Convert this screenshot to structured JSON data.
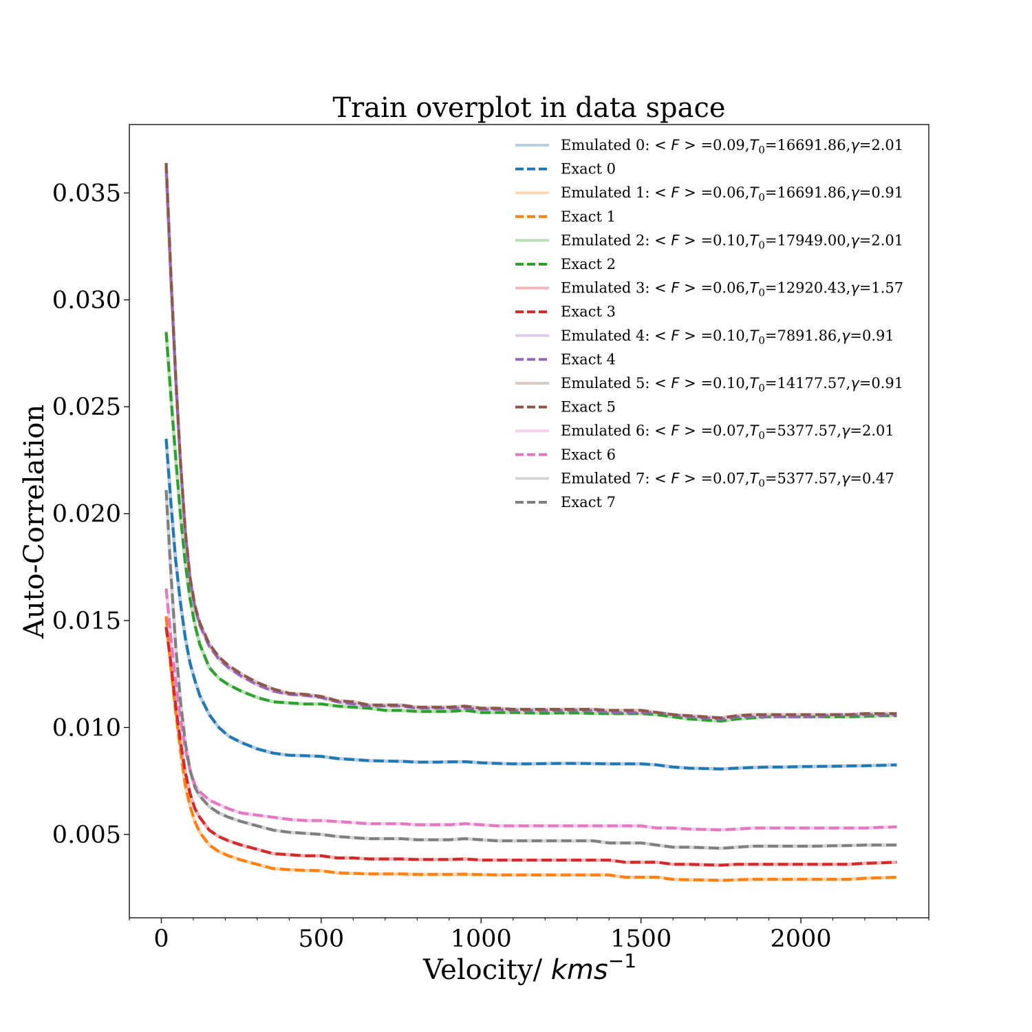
{
  "chart_data": {
    "type": "line",
    "title": "Train overplot in data space",
    "xlabel": "Velocity/ ",
    "xlabel_math": "kms",
    "xlabel_sup": "−1",
    "ylabel": "Auto-Correlation",
    "xlim": [
      -100,
      2400
    ],
    "ylim": [
      0.0011,
      0.0382
    ],
    "xticks": [
      0,
      500,
      1000,
      1500,
      2000
    ],
    "xtick_labels": [
      "0",
      "500",
      "1000",
      "1500",
      "2000"
    ],
    "yticks": [
      0.005,
      0.01,
      0.015,
      0.02,
      0.025,
      0.03,
      0.035
    ],
    "ytick_labels": [
      "0.005",
      "0.010",
      "0.015",
      "0.020",
      "0.025",
      "0.030",
      "0.035"
    ],
    "grid": false,
    "legend_position": "upper right",
    "x": [
      15,
      30,
      45,
      60,
      75,
      90,
      105,
      120,
      150,
      180,
      210,
      250,
      300,
      350,
      400,
      450,
      500,
      550,
      600,
      650,
      700,
      750,
      800,
      850,
      900,
      950,
      1000,
      1050,
      1100,
      1150,
      1200,
      1250,
      1300,
      1350,
      1400,
      1450,
      1500,
      1550,
      1600,
      1650,
      1700,
      1750,
      1800,
      1850,
      1900,
      1950,
      2000,
      2050,
      2100,
      2150,
      2200,
      2250,
      2300
    ],
    "series": [
      {
        "index": 0,
        "emulated_label": "Emulated 0:",
        "exact_label": "Exact 0",
        "params": {
          "F": "0.09",
          "T0": "16691.86",
          "gamma": "2.01"
        },
        "color": "#1f77b4",
        "light_color": "#b5cde3",
        "values": [
          0.0235,
          0.0205,
          0.0178,
          0.0158,
          0.0142,
          0.013,
          0.0122,
          0.0115,
          0.0106,
          0.01,
          0.0096,
          0.0093,
          0.009,
          0.0088,
          0.0087,
          0.00868,
          0.00865,
          0.00855,
          0.0085,
          0.00845,
          0.00843,
          0.00842,
          0.00838,
          0.00838,
          0.00839,
          0.0084,
          0.00835,
          0.00832,
          0.0083,
          0.0083,
          0.00831,
          0.00832,
          0.00832,
          0.00831,
          0.0083,
          0.0083,
          0.0083,
          0.00825,
          0.00815,
          0.0081,
          0.00808,
          0.00806,
          0.0081,
          0.00813,
          0.00815,
          0.00815,
          0.00817,
          0.00818,
          0.00819,
          0.0082,
          0.00821,
          0.00823,
          0.00825
        ]
      },
      {
        "index": 1,
        "emulated_label": "Emulated 1:",
        "exact_label": "Exact 1",
        "params": {
          "F": "0.06",
          "T0": "16691.86",
          "gamma": "0.91"
        },
        "color": "#ff7f0e",
        "light_color": "#ffd4ad",
        "values": [
          0.0152,
          0.0128,
          0.0107,
          0.0089,
          0.0073,
          0.0063,
          0.0056,
          0.0051,
          0.0045,
          0.0042,
          0.004,
          0.0038,
          0.0036,
          0.0034,
          0.00335,
          0.00332,
          0.0033,
          0.0032,
          0.00318,
          0.00315,
          0.00315,
          0.00315,
          0.00313,
          0.00313,
          0.00313,
          0.00314,
          0.00312,
          0.0031,
          0.0031,
          0.0031,
          0.0031,
          0.0031,
          0.0031,
          0.0031,
          0.0031,
          0.003,
          0.003,
          0.003,
          0.0029,
          0.00288,
          0.00287,
          0.00285,
          0.00288,
          0.0029,
          0.0029,
          0.0029,
          0.0029,
          0.0029,
          0.0029,
          0.0029,
          0.00295,
          0.00297,
          0.003
        ]
      },
      {
        "index": 2,
        "emulated_label": "Emulated 2:",
        "exact_label": "Exact 2",
        "params": {
          "F": "0.10",
          "T0": "17949.00",
          "gamma": "2.01"
        },
        "color": "#2ca02c",
        "light_color": "#b9e0b5",
        "values": [
          0.0285,
          0.0255,
          0.0226,
          0.0199,
          0.0177,
          0.016,
          0.0148,
          0.0139,
          0.0128,
          0.0123,
          0.012,
          0.0117,
          0.0114,
          0.0112,
          0.01115,
          0.0111,
          0.0111,
          0.011,
          0.01095,
          0.0109,
          0.0108,
          0.0108,
          0.01075,
          0.01075,
          0.01075,
          0.0108,
          0.0107,
          0.0107,
          0.0107,
          0.01068,
          0.01067,
          0.01068,
          0.01068,
          0.01066,
          0.01065,
          0.01065,
          0.01065,
          0.0106,
          0.0105,
          0.0104,
          0.01035,
          0.0103,
          0.0104,
          0.01045,
          0.0105,
          0.0105,
          0.0105,
          0.0105,
          0.0105,
          0.0105,
          0.01052,
          0.01055,
          0.01055
        ]
      },
      {
        "index": 3,
        "emulated_label": "Emulated 3:",
        "exact_label": "Exact 3",
        "params": {
          "F": "0.06",
          "T0": "12920.43",
          "gamma": "1.57"
        },
        "color": "#d62728",
        "light_color": "#f2b6b6",
        "values": [
          0.0147,
          0.013,
          0.011,
          0.0093,
          0.0079,
          0.0069,
          0.0062,
          0.0058,
          0.0052,
          0.0049,
          0.0047,
          0.0045,
          0.0043,
          0.0041,
          0.00405,
          0.004,
          0.004,
          0.0039,
          0.0039,
          0.00385,
          0.00385,
          0.00385,
          0.00383,
          0.00383,
          0.00383,
          0.00385,
          0.0038,
          0.0038,
          0.0038,
          0.0038,
          0.0038,
          0.0038,
          0.0038,
          0.0038,
          0.0038,
          0.0037,
          0.0037,
          0.0037,
          0.0036,
          0.0036,
          0.00358,
          0.00356,
          0.0036,
          0.0036,
          0.0036,
          0.0036,
          0.0036,
          0.0036,
          0.0036,
          0.0036,
          0.00365,
          0.00367,
          0.0037
        ]
      },
      {
        "index": 4,
        "emulated_label": "Emulated 4:",
        "exact_label": "Exact 4",
        "params": {
          "F": "0.10",
          "T0": "7891.86",
          "gamma": "0.91"
        },
        "color": "#9467bd",
        "light_color": "#dccce9",
        "values": [
          0.0362,
          0.031,
          0.0263,
          0.0223,
          0.0191,
          0.0169,
          0.0156,
          0.0148,
          0.0138,
          0.0132,
          0.0128,
          0.0124,
          0.012,
          0.0117,
          0.01155,
          0.0115,
          0.0114,
          0.0112,
          0.0111,
          0.011,
          0.011,
          0.011,
          0.0109,
          0.0109,
          0.0109,
          0.0109,
          0.01085,
          0.01085,
          0.0108,
          0.0108,
          0.0108,
          0.0108,
          0.0108,
          0.0108,
          0.0107,
          0.0107,
          0.0107,
          0.0107,
          0.0106,
          0.0105,
          0.01045,
          0.0104,
          0.0105,
          0.0105,
          0.0105,
          0.0105,
          0.0105,
          0.0105,
          0.0106,
          0.0106,
          0.0106,
          0.0106,
          0.0106
        ]
      },
      {
        "index": 5,
        "emulated_label": "Emulated 5:",
        "exact_label": "Exact 5",
        "params": {
          "F": "0.10",
          "T0": "14177.57",
          "gamma": "0.91"
        },
        "color": "#8c564b",
        "light_color": "#dfc9c5",
        "values": [
          0.0364,
          0.0312,
          0.0264,
          0.0224,
          0.0192,
          0.017,
          0.0157,
          0.0149,
          0.0139,
          0.0133,
          0.0129,
          0.0125,
          0.0121,
          0.0118,
          0.0116,
          0.01155,
          0.01145,
          0.01125,
          0.0112,
          0.01105,
          0.01105,
          0.01105,
          0.01095,
          0.01095,
          0.01095,
          0.011,
          0.0109,
          0.0109,
          0.01085,
          0.01085,
          0.01085,
          0.01085,
          0.01085,
          0.01085,
          0.0108,
          0.0108,
          0.0108,
          0.0107,
          0.0106,
          0.01055,
          0.0105,
          0.01045,
          0.01055,
          0.0106,
          0.0106,
          0.0106,
          0.0106,
          0.0106,
          0.0106,
          0.0106,
          0.01065,
          0.01065,
          0.01065
        ]
      },
      {
        "index": 6,
        "emulated_label": "Emulated 6:",
        "exact_label": "Exact 6",
        "params": {
          "F": "0.07",
          "T0": "5377.57",
          "gamma": "2.01"
        },
        "color": "#e377c2",
        "light_color": "#f6cfe9",
        "values": [
          0.0165,
          0.0142,
          0.0121,
          0.0104,
          0.009,
          0.008,
          0.0073,
          0.007,
          0.0066,
          0.0064,
          0.0062,
          0.006,
          0.0059,
          0.0058,
          0.0057,
          0.00565,
          0.00565,
          0.0056,
          0.00555,
          0.0055,
          0.0055,
          0.0055,
          0.00545,
          0.00545,
          0.00545,
          0.0055,
          0.00545,
          0.0054,
          0.0054,
          0.0054,
          0.0054,
          0.0054,
          0.0054,
          0.0054,
          0.0054,
          0.0054,
          0.0054,
          0.0053,
          0.0053,
          0.00525,
          0.00523,
          0.00521,
          0.00525,
          0.0053,
          0.0053,
          0.0053,
          0.0053,
          0.0053,
          0.0053,
          0.0053,
          0.0053,
          0.00533,
          0.00535
        ]
      },
      {
        "index": 7,
        "emulated_label": "Emulated 7:",
        "exact_label": "Exact 7",
        "params": {
          "F": "0.07",
          "T0": "5377.57",
          "gamma": "0.47"
        },
        "color": "#7f7f7f",
        "light_color": "#d4d4d4",
        "values": [
          0.0211,
          0.0172,
          0.0138,
          0.0112,
          0.0093,
          0.008,
          0.0072,
          0.0068,
          0.0063,
          0.006,
          0.0058,
          0.0056,
          0.0054,
          0.0052,
          0.0051,
          0.00505,
          0.005,
          0.0049,
          0.00485,
          0.0048,
          0.0048,
          0.0048,
          0.00475,
          0.00475,
          0.00475,
          0.0048,
          0.00475,
          0.0047,
          0.0047,
          0.0047,
          0.0047,
          0.0047,
          0.0047,
          0.0047,
          0.0046,
          0.0046,
          0.0046,
          0.0045,
          0.0044,
          0.0044,
          0.00438,
          0.00435,
          0.0044,
          0.00445,
          0.00445,
          0.00445,
          0.00445,
          0.00445,
          0.00447,
          0.00448,
          0.0045,
          0.0045,
          0.0045
        ]
      }
    ]
  }
}
